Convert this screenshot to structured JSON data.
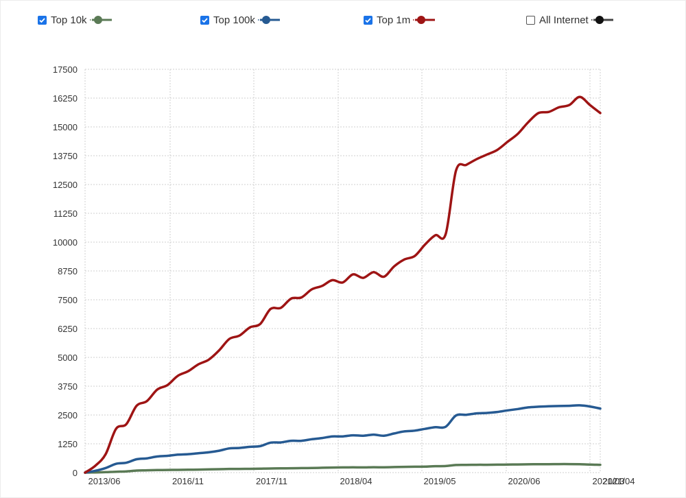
{
  "legend": [
    {
      "label": "Top 10k",
      "checked": true,
      "color": "#5a7a55"
    },
    {
      "label": "Top 100k",
      "checked": true,
      "color": "#265a92"
    },
    {
      "label": "Top 1m",
      "checked": true,
      "color": "#9e1414"
    },
    {
      "label": "All Internet",
      "checked": false,
      "color": "#111111",
      "line_color": "#444444"
    }
  ],
  "chart_data": {
    "type": "line",
    "title": "",
    "xlabel": "",
    "ylabel": "",
    "x_tick_labels": [
      "2013/06",
      "2016/11",
      "2017/11",
      "2018/04",
      "2019/05",
      "2020/06",
      "2021/03",
      "2021/04"
    ],
    "y_ticks": [
      0,
      1250,
      2500,
      3750,
      5000,
      6250,
      7500,
      8750,
      10000,
      11250,
      12500,
      13750,
      15000,
      16250,
      17500
    ],
    "ylim": [
      0,
      17500
    ],
    "grid": true,
    "legend_position": "top",
    "series": [
      {
        "name": "Top 1m",
        "color": "#9e1414",
        "values": [
          0,
          300,
          800,
          1900,
          2100,
          2900,
          3100,
          3600,
          3800,
          4200,
          4400,
          4700,
          4900,
          5300,
          5800,
          5950,
          6300,
          6450,
          7100,
          7150,
          7550,
          7600,
          7950,
          8100,
          8350,
          8250,
          8600,
          8450,
          8700,
          8500,
          8950,
          9250,
          9400,
          9900,
          10300,
          10350,
          13100,
          13350,
          13600,
          13800,
          14000,
          14350,
          14700,
          15200,
          15600,
          15650,
          15850,
          15950,
          16300,
          15950,
          15600
        ]
      },
      {
        "name": "Top 100k",
        "color": "#265a92",
        "values": [
          0,
          80,
          200,
          380,
          430,
          580,
          620,
          700,
          730,
          780,
          800,
          840,
          880,
          950,
          1050,
          1070,
          1120,
          1150,
          1300,
          1310,
          1380,
          1380,
          1450,
          1500,
          1570,
          1570,
          1620,
          1600,
          1650,
          1600,
          1700,
          1790,
          1820,
          1900,
          1970,
          1990,
          2480,
          2510,
          2570,
          2590,
          2630,
          2700,
          2760,
          2830,
          2860,
          2880,
          2890,
          2900,
          2920,
          2870,
          2780
        ]
      },
      {
        "name": "Top 10k",
        "color": "#5a7a55",
        "values": [
          0,
          10,
          20,
          40,
          50,
          90,
          100,
          110,
          115,
          120,
          125,
          130,
          140,
          150,
          160,
          160,
          165,
          170,
          180,
          185,
          190,
          195,
          200,
          210,
          220,
          225,
          230,
          225,
          235,
          230,
          240,
          250,
          255,
          260,
          280,
          285,
          330,
          335,
          340,
          340,
          345,
          350,
          355,
          360,
          365,
          365,
          370,
          370,
          365,
          350,
          340
        ]
      },
      {
        "name": "All Internet",
        "color": "#444444",
        "values": []
      }
    ]
  }
}
